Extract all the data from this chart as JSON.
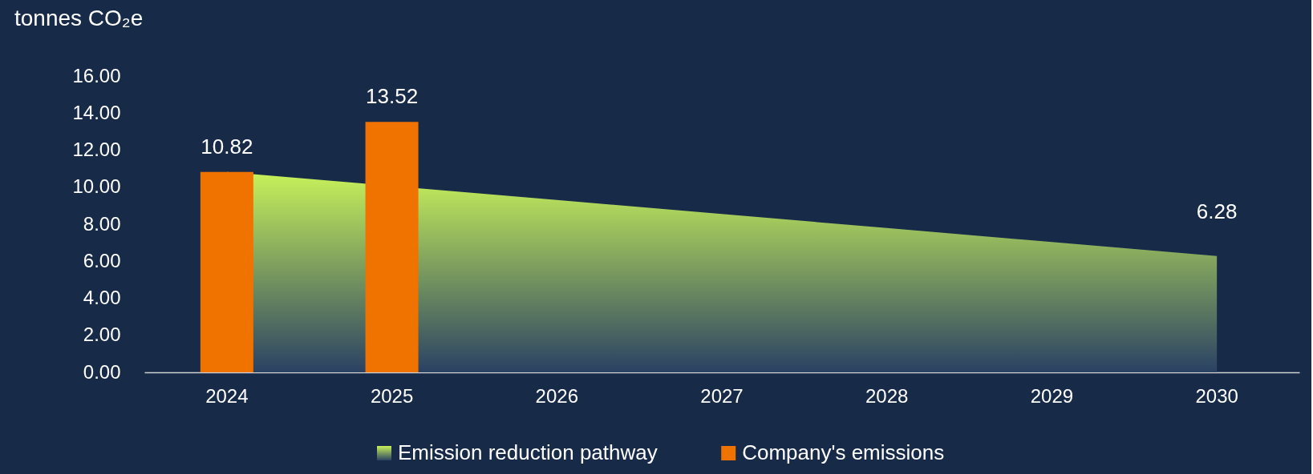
{
  "chart_data": {
    "type": "bar",
    "ylabel": "tonnes CO₂e",
    "categories": [
      "2024",
      "2025",
      "2026",
      "2027",
      "2028",
      "2029",
      "2030"
    ],
    "series": [
      {
        "name": "Emission reduction pathway",
        "type": "area",
        "color": "#c8f25a",
        "values": [
          10.82,
          null,
          9.31,
          8.55,
          7.79,
          7.04,
          6.28
        ],
        "value_labels": [
          null,
          null,
          null,
          null,
          null,
          null,
          "6.28"
        ]
      },
      {
        "name": "Company's emissions",
        "color": "#f07300",
        "values": [
          10.82,
          13.52,
          null,
          null,
          null,
          null,
          null
        ],
        "value_labels": [
          "10.82",
          "13.52",
          null,
          null,
          null,
          null,
          null
        ]
      }
    ],
    "ylim": [
      0,
      16
    ],
    "yticks": [
      {
        "value": 0,
        "label": "0.00"
      },
      {
        "value": 2,
        "label": "2.00"
      },
      {
        "value": 4,
        "label": "4.00"
      },
      {
        "value": 6,
        "label": "6.00"
      },
      {
        "value": 8,
        "label": "8.00"
      },
      {
        "value": 10,
        "label": "10.00"
      },
      {
        "value": 12,
        "label": "12.00"
      },
      {
        "value": 14,
        "label": "14.00"
      },
      {
        "value": 16,
        "label": "16.00"
      }
    ],
    "grid": false,
    "legend": "bottom"
  }
}
